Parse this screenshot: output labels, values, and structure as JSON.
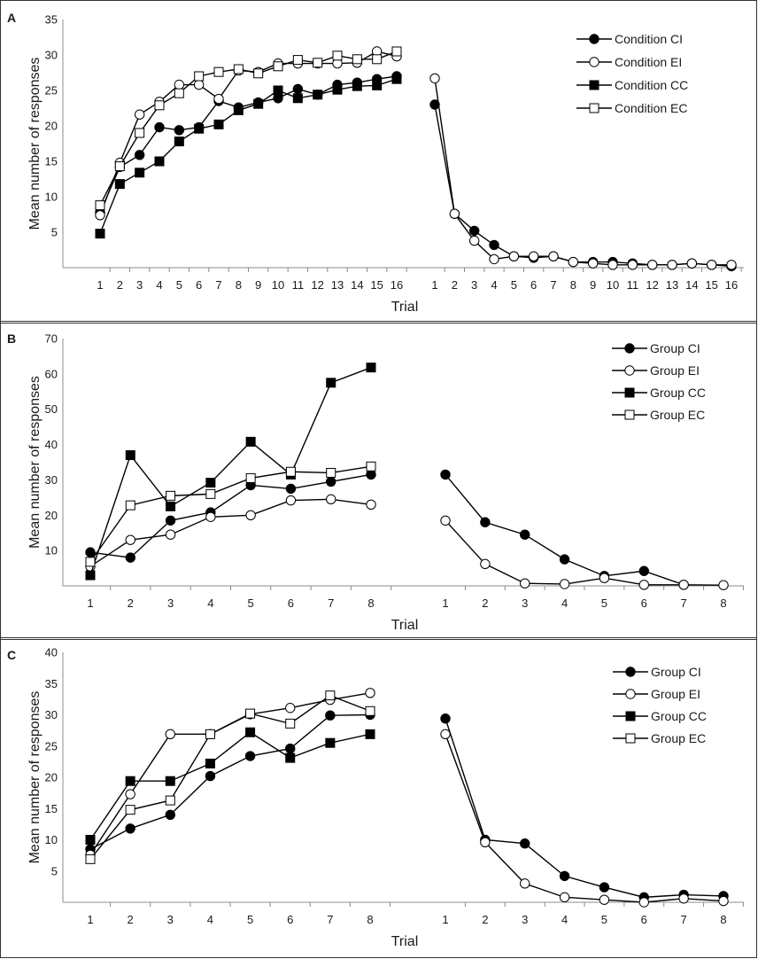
{
  "chart_data": [
    {
      "type": "line",
      "panel_label": "A",
      "ylabel": "Mean number of responses",
      "xlabel": "Trial",
      "ylim": [
        0,
        35
      ],
      "yticks": [
        5,
        10,
        15,
        20,
        25,
        30,
        35
      ],
      "grid": false,
      "legend_position": "top-right",
      "segments": [
        {
          "categories": [
            "1",
            "2",
            "3",
            "4",
            "5",
            "6",
            "7",
            "8",
            "9",
            "10",
            "11",
            "12",
            "13",
            "14",
            "15",
            "16"
          ]
        },
        {
          "categories": [
            "1",
            "2",
            "3",
            "4",
            "5",
            "6",
            "7",
            "8",
            "9",
            "10",
            "11",
            "12",
            "13",
            "14",
            "15",
            "16"
          ]
        }
      ],
      "series": [
        {
          "name": "Condition CI",
          "marker": "filled-circle",
          "values": [
            [
              7.8,
              14.2,
              15.9,
              19.8,
              19.4,
              19.8,
              23.5,
              22.6,
              23.3,
              23.9,
              25.2,
              24.4,
              25.8,
              26.1,
              26.6,
              27.0
            ],
            [
              23.0,
              7.6,
              5.2,
              3.2,
              1.6,
              1.4,
              1.6,
              0.8,
              0.8,
              0.8,
              0.6,
              0.4,
              0.4,
              0.6,
              0.4,
              0.2
            ]
          ]
        },
        {
          "name": "Condition EI",
          "marker": "open-circle",
          "values": [
            [
              7.4,
              14.8,
              21.6,
              23.4,
              25.8,
              25.8,
              23.8,
              27.8,
              27.6,
              28.8,
              28.8,
              28.8,
              28.8,
              28.9,
              30.5,
              29.8
            ],
            [
              26.7,
              7.6,
              3.8,
              1.2,
              1.6,
              1.6,
              1.6,
              0.8,
              0.6,
              0.4,
              0.4,
              0.4,
              0.4,
              0.6,
              0.4,
              0.4
            ]
          ]
        },
        {
          "name": "Condition CC",
          "marker": "filled-square",
          "values": [
            [
              4.8,
              11.8,
              13.4,
              15.0,
              17.8,
              19.6,
              20.2,
              22.2,
              23.1,
              25.0,
              23.9,
              24.4,
              25.1,
              25.6,
              25.7,
              26.6
            ],
            [
              null,
              null,
              null,
              null,
              null,
              null,
              null,
              null,
              null,
              null,
              null,
              null,
              null,
              null,
              null,
              null
            ]
          ]
        },
        {
          "name": "Condition EC",
          "marker": "open-square",
          "values": [
            [
              8.8,
              14.3,
              19.0,
              22.9,
              24.6,
              27.0,
              27.6,
              28.0,
              27.4,
              28.4,
              29.3,
              28.9,
              29.9,
              29.4,
              29.4,
              30.5
            ],
            [
              null,
              null,
              null,
              null,
              null,
              null,
              null,
              null,
              null,
              null,
              null,
              null,
              null,
              null,
              null,
              null
            ]
          ]
        }
      ]
    },
    {
      "type": "line",
      "panel_label": "B",
      "ylabel": "Mean number of responses",
      "xlabel": "Trial",
      "ylim": [
        0,
        70
      ],
      "yticks": [
        10,
        20,
        30,
        40,
        50,
        60,
        70
      ],
      "grid": false,
      "legend_position": "top-right",
      "segments": [
        {
          "categories": [
            "1",
            "2",
            "3",
            "4",
            "5",
            "6",
            "7",
            "8"
          ]
        },
        {
          "categories": [
            "1",
            "2",
            "3",
            "4",
            "5",
            "6",
            "7",
            "8"
          ]
        }
      ],
      "series": [
        {
          "name": "Group CI",
          "marker": "filled-circle",
          "values": [
            [
              9.5,
              8.0,
              18.5,
              20.8,
              28.5,
              27.5,
              29.5,
              31.5
            ],
            [
              31.5,
              18.0,
              14.5,
              7.5,
              2.8,
              4.2,
              0.3,
              null
            ]
          ]
        },
        {
          "name": "Group EI",
          "marker": "open-circle",
          "values": [
            [
              5.5,
              13.0,
              14.5,
              19.5,
              20.0,
              24.2,
              24.5,
              23.0
            ],
            [
              18.5,
              6.2,
              0.7,
              0.5,
              2.2,
              0.3,
              0.3,
              0.2
            ]
          ]
        },
        {
          "name": "Group CC",
          "marker": "filled-square",
          "values": [
            [
              3.0,
              37.0,
              22.5,
              29.2,
              40.8,
              31.5,
              57.5,
              61.8
            ],
            [
              null,
              null,
              null,
              null,
              null,
              null,
              null,
              null
            ]
          ]
        },
        {
          "name": "Group EC",
          "marker": "open-square",
          "values": [
            [
              6.8,
              22.8,
              25.5,
              26.0,
              30.5,
              32.3,
              32.0,
              33.8
            ],
            [
              null,
              null,
              null,
              null,
              null,
              null,
              null,
              null
            ]
          ]
        }
      ]
    },
    {
      "type": "line",
      "panel_label": "C",
      "ylabel": "Mean number of responses",
      "xlabel": "Trial",
      "ylim": [
        0,
        40
      ],
      "yticks": [
        5,
        10,
        15,
        20,
        25,
        30,
        35,
        40
      ],
      "grid": false,
      "legend_position": "top-right",
      "segments": [
        {
          "categories": [
            "1",
            "2",
            "3",
            "4",
            "5",
            "6",
            "7",
            "8"
          ]
        },
        {
          "categories": [
            "1",
            "2",
            "3",
            "4",
            "5",
            "6",
            "7",
            "8"
          ]
        }
      ],
      "series": [
        {
          "name": "Group CI",
          "marker": "filled-circle",
          "values": [
            [
              8.5,
              11.8,
              14.0,
              20.2,
              23.4,
              24.6,
              29.9,
              30.0
            ],
            [
              29.4,
              10.0,
              9.4,
              4.2,
              2.4,
              0.8,
              1.2,
              1.0
            ]
          ]
        },
        {
          "name": "Group EI",
          "marker": "open-circle",
          "values": [
            [
              7.6,
              17.3,
              26.9,
              26.9,
              30.1,
              31.1,
              32.4,
              33.5
            ],
            [
              26.9,
              9.6,
              3.0,
              0.8,
              0.4,
              0.0,
              0.6,
              0.2
            ]
          ]
        },
        {
          "name": "Group CC",
          "marker": "filled-square",
          "values": [
            [
              10.0,
              19.4,
              19.4,
              22.2,
              27.2,
              23.1,
              25.5,
              26.9
            ],
            [
              null,
              null,
              null,
              null,
              null,
              null,
              null,
              null
            ]
          ]
        },
        {
          "name": "Group EC",
          "marker": "open-square",
          "values": [
            [
              6.9,
              14.8,
              16.3,
              26.9,
              30.2,
              28.6,
              33.1,
              30.6
            ],
            [
              null,
              null,
              null,
              null,
              null,
              null,
              null,
              null
            ]
          ]
        }
      ]
    }
  ]
}
